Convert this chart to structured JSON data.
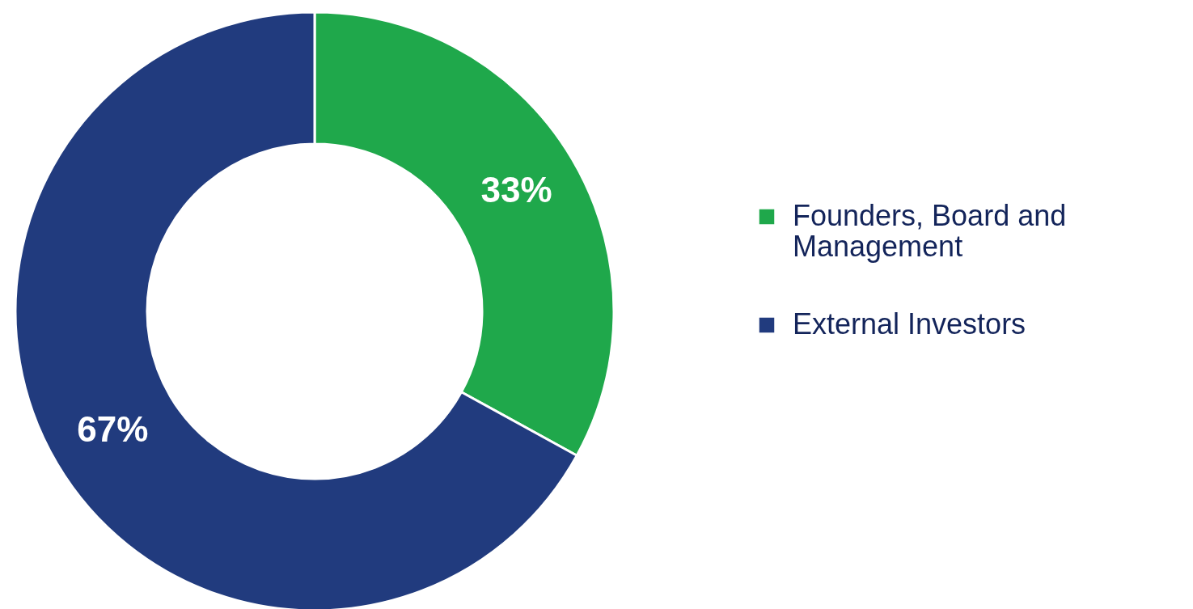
{
  "chart_data": {
    "type": "donut",
    "categories": [
      "Founders, Board and Management",
      "External Investors"
    ],
    "values": [
      33,
      67
    ],
    "colors": [
      "#1fa84b",
      "#213b7e"
    ],
    "value_labels": [
      "33%",
      "67%"
    ],
    "legend": "right"
  }
}
